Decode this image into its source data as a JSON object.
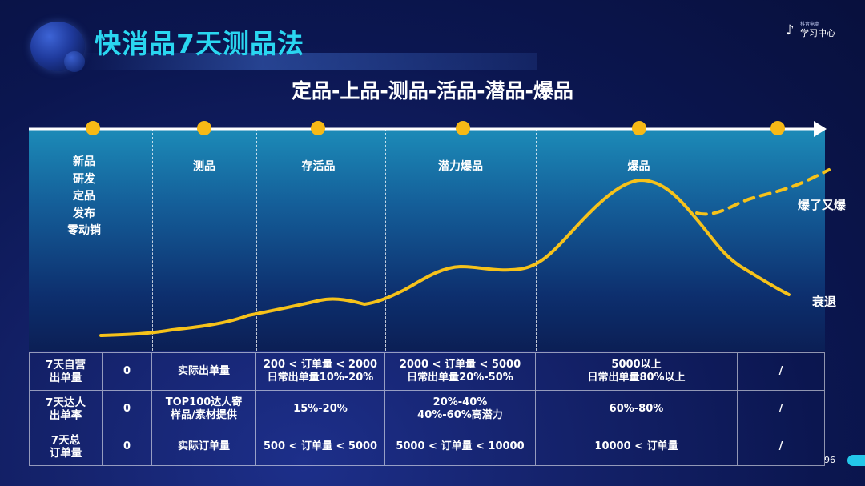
{
  "header": {
    "title": "快消品7天测品法",
    "logo_small": "抖音电商",
    "logo_big": "学习中心"
  },
  "subtitle": "定品-上品-测品-活品-潜品-爆品",
  "stages": {
    "s0_lines": [
      "新品",
      "研发",
      "定品",
      "发布",
      "零动销"
    ],
    "s1": "测品",
    "s2": "存活品",
    "s3": "潜力爆品",
    "s4": "爆品"
  },
  "curve_labels": {
    "up": "爆了又爆",
    "down": "衰退"
  },
  "table": {
    "rows": [
      {
        "label": "7天自营\n出单量",
        "cells": [
          "0",
          "实际出单量",
          "200 < 订单量 < 2000\n日常出单量10%-20%",
          "2000 < 订单量 < 5000\n日常出单量20%-50%",
          "5000以上\n日常出单量80%以上",
          "/"
        ]
      },
      {
        "label": "7天达人\n出单率",
        "cells": [
          "0",
          "TOP100达人寄\n样品/素材提供",
          "15%-20%",
          "20%-40%\n40%-60%高潜力",
          "60%-80%",
          "/"
        ]
      },
      {
        "label": "7天总\n订单量",
        "cells": [
          "0",
          "实际订单量",
          "500 < 订单量 < 5000",
          "5000 < 订单量 < 10000",
          "10000 < 订单量",
          "/"
        ]
      }
    ]
  },
  "page_number": "96",
  "colors": {
    "title": "#2ad6f0",
    "curve": "#f6c21a",
    "dot": "#f7b916",
    "panel_top": "#1c8bb8"
  }
}
